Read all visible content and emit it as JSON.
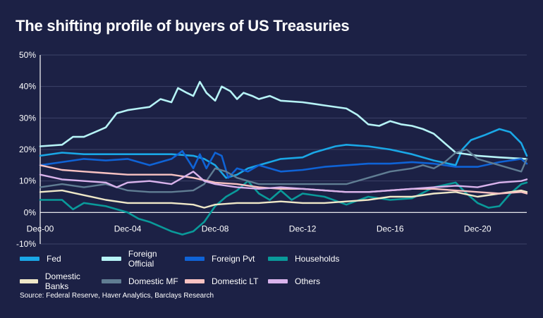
{
  "title": "The shifting profile of buyers of US Treasuries",
  "source": "Source: Federal Reserve, Haver Analytics, Barclays Research",
  "chart_data": {
    "type": "line",
    "title": "The shifting profile of buyers of US Treasuries",
    "x_tick_labels": [
      "Dec-00",
      "Dec-04",
      "Dec-08",
      "Dec-12",
      "Dec-16",
      "Dec-20"
    ],
    "x_tick_years": [
      2000,
      2004,
      2008,
      2012,
      2016,
      2020
    ],
    "x_range_years": [
      2000,
      2022.25
    ],
    "y_tick_labels": [
      "50%",
      "40%",
      "30%",
      "20%",
      "10%",
      "0%",
      "-10%"
    ],
    "y_ticks": [
      50,
      40,
      30,
      20,
      10,
      0,
      -10
    ],
    "ylim": [
      -10,
      50
    ],
    "grid": true,
    "legend_position": "bottom",
    "series": [
      {
        "name": "Fed",
        "color": "#1aa7e6",
        "width": 2.6,
        "points": [
          [
            2000,
            18
          ],
          [
            2001,
            19
          ],
          [
            2002,
            18.5
          ],
          [
            2003,
            18.5
          ],
          [
            2004,
            18.5
          ],
          [
            2005,
            18.5
          ],
          [
            2006,
            18.5
          ],
          [
            2007,
            18
          ],
          [
            2007.5,
            17
          ],
          [
            2008,
            15
          ],
          [
            2008.5,
            11
          ],
          [
            2009,
            12
          ],
          [
            2009.5,
            14
          ],
          [
            2010,
            15
          ],
          [
            2011,
            17
          ],
          [
            2012,
            17.5
          ],
          [
            2012.5,
            19
          ],
          [
            2013,
            20
          ],
          [
            2013.5,
            21
          ],
          [
            2014,
            21.5
          ],
          [
            2015,
            21
          ],
          [
            2016,
            20
          ],
          [
            2017,
            18.5
          ],
          [
            2018,
            16.5
          ],
          [
            2019,
            15
          ],
          [
            2019.3,
            20
          ],
          [
            2019.7,
            23
          ],
          [
            2020.3,
            24.5
          ],
          [
            2021,
            26.5
          ],
          [
            2021.5,
            25.5
          ],
          [
            2022,
            22
          ],
          [
            2022.25,
            18
          ]
        ]
      },
      {
        "name": "Foreign Official",
        "color": "#b6f3f6",
        "width": 2.6,
        "points": [
          [
            2000,
            21
          ],
          [
            2001,
            21.5
          ],
          [
            2001.5,
            24
          ],
          [
            2002,
            24
          ],
          [
            2002.5,
            25.5
          ],
          [
            2003,
            27
          ],
          [
            2003.5,
            31.5
          ],
          [
            2004,
            32.5
          ],
          [
            2004.5,
            33
          ],
          [
            2005,
            33.5
          ],
          [
            2005.5,
            36
          ],
          [
            2006,
            35
          ],
          [
            2006.3,
            39.5
          ],
          [
            2006.7,
            38
          ],
          [
            2007,
            37
          ],
          [
            2007.3,
            41.5
          ],
          [
            2007.6,
            38
          ],
          [
            2008,
            35.5
          ],
          [
            2008.3,
            40
          ],
          [
            2008.7,
            38.5
          ],
          [
            2009,
            36
          ],
          [
            2009.3,
            38
          ],
          [
            2009.7,
            37
          ],
          [
            2010,
            36
          ],
          [
            2010.5,
            37
          ],
          [
            2011,
            35.5
          ],
          [
            2012,
            35
          ],
          [
            2012.5,
            34.5
          ],
          [
            2013,
            34
          ],
          [
            2014,
            33
          ],
          [
            2014.5,
            31
          ],
          [
            2015,
            28
          ],
          [
            2015.5,
            27.5
          ],
          [
            2016,
            29
          ],
          [
            2016.5,
            28
          ],
          [
            2017,
            27.5
          ],
          [
            2017.5,
            26.5
          ],
          [
            2018,
            25
          ],
          [
            2018.5,
            22
          ],
          [
            2019,
            19
          ],
          [
            2020,
            18
          ],
          [
            2021,
            17.5
          ],
          [
            2022.25,
            17
          ]
        ]
      },
      {
        "name": "Foreign Pvt",
        "color": "#0f63d6",
        "width": 2.6,
        "points": [
          [
            2000,
            15
          ],
          [
            2001,
            16
          ],
          [
            2002,
            17
          ],
          [
            2003,
            16.5
          ],
          [
            2004,
            17
          ],
          [
            2005,
            15
          ],
          [
            2006,
            17
          ],
          [
            2006.5,
            19.5
          ],
          [
            2007,
            14
          ],
          [
            2007.3,
            18.5
          ],
          [
            2007.6,
            14
          ],
          [
            2008,
            19
          ],
          [
            2008.3,
            18
          ],
          [
            2008.6,
            11
          ],
          [
            2009,
            14
          ],
          [
            2009.5,
            13
          ],
          [
            2010,
            15
          ],
          [
            2010.5,
            14
          ],
          [
            2011,
            13
          ],
          [
            2012,
            13.5
          ],
          [
            2013,
            14.5
          ],
          [
            2014,
            15
          ],
          [
            2015,
            15.5
          ],
          [
            2016,
            15.5
          ],
          [
            2017,
            16
          ],
          [
            2018,
            15.5
          ],
          [
            2019,
            14.5
          ],
          [
            2020,
            14.5
          ],
          [
            2021,
            16
          ],
          [
            2022,
            17
          ],
          [
            2022.25,
            15.5
          ]
        ]
      },
      {
        "name": "Households",
        "color": "#0a9a9a",
        "width": 2.6,
        "points": [
          [
            2000,
            4
          ],
          [
            2001,
            4
          ],
          [
            2001.5,
            1
          ],
          [
            2002,
            3
          ],
          [
            2003,
            2
          ],
          [
            2004,
            0
          ],
          [
            2004.5,
            -2
          ],
          [
            2005,
            -3
          ],
          [
            2006,
            -6
          ],
          [
            2006.5,
            -7
          ],
          [
            2007,
            -6
          ],
          [
            2007.5,
            -3
          ],
          [
            2008,
            2
          ],
          [
            2008.5,
            5
          ],
          [
            2009,
            7
          ],
          [
            2009.5,
            10
          ],
          [
            2010,
            6
          ],
          [
            2010.5,
            4
          ],
          [
            2011,
            7
          ],
          [
            2011.5,
            4
          ],
          [
            2012,
            6
          ],
          [
            2013,
            5
          ],
          [
            2014,
            2.5
          ],
          [
            2015,
            5
          ],
          [
            2016,
            4
          ],
          [
            2017,
            4.5
          ],
          [
            2018,
            8
          ],
          [
            2019,
            9.5
          ],
          [
            2019.5,
            6
          ],
          [
            2020,
            3
          ],
          [
            2020.5,
            1.5
          ],
          [
            2021,
            2
          ],
          [
            2021.5,
            6
          ],
          [
            2022,
            9
          ],
          [
            2022.25,
            9.5
          ]
        ]
      },
      {
        "name": "Domestic Banks",
        "color": "#efe8c8",
        "width": 2.4,
        "points": [
          [
            2000,
            6.5
          ],
          [
            2001,
            7
          ],
          [
            2002,
            5.5
          ],
          [
            2003,
            4
          ],
          [
            2004,
            3
          ],
          [
            2005,
            3
          ],
          [
            2006,
            3
          ],
          [
            2007,
            2.5
          ],
          [
            2007.5,
            1.5
          ],
          [
            2008,
            2.5
          ],
          [
            2009,
            3
          ],
          [
            2010,
            3
          ],
          [
            2011,
            3.5
          ],
          [
            2012,
            3
          ],
          [
            2013,
            3
          ],
          [
            2014,
            3.5
          ],
          [
            2015,
            4
          ],
          [
            2016,
            5
          ],
          [
            2017,
            5
          ],
          [
            2018,
            6
          ],
          [
            2019,
            6.5
          ],
          [
            2020,
            5
          ],
          [
            2021,
            6
          ],
          [
            2022,
            7
          ],
          [
            2022.25,
            6.5
          ]
        ]
      },
      {
        "name": "Domestic MF",
        "color": "#607d93",
        "width": 2.4,
        "points": [
          [
            2000,
            8
          ],
          [
            2001,
            9
          ],
          [
            2002,
            8
          ],
          [
            2003,
            9
          ],
          [
            2004,
            7
          ],
          [
            2005,
            6.5
          ],
          [
            2006,
            6.5
          ],
          [
            2007,
            7
          ],
          [
            2007.5,
            9
          ],
          [
            2008,
            14
          ],
          [
            2008.5,
            13
          ],
          [
            2009,
            11
          ],
          [
            2010,
            9
          ],
          [
            2011,
            9
          ],
          [
            2012,
            9
          ],
          [
            2013,
            9
          ],
          [
            2014,
            9
          ],
          [
            2015,
            11
          ],
          [
            2016,
            13
          ],
          [
            2017,
            14
          ],
          [
            2017.5,
            15
          ],
          [
            2018,
            14
          ],
          [
            2018.5,
            16
          ],
          [
            2019,
            19
          ],
          [
            2019.5,
            20
          ],
          [
            2020,
            17
          ],
          [
            2020.5,
            16
          ],
          [
            2021,
            15
          ],
          [
            2021.5,
            14
          ],
          [
            2022,
            13
          ],
          [
            2022.25,
            17
          ]
        ]
      },
      {
        "name": "Domestic LT",
        "color": "#f8c2c2",
        "width": 2.4,
        "points": [
          [
            2000,
            15
          ],
          [
            2001,
            13.5
          ],
          [
            2002,
            13
          ],
          [
            2003,
            12.5
          ],
          [
            2004,
            12
          ],
          [
            2005,
            12
          ],
          [
            2006,
            12
          ],
          [
            2007,
            11
          ],
          [
            2008,
            9.5
          ],
          [
            2009,
            9
          ],
          [
            2010,
            8
          ],
          [
            2011,
            7.5
          ],
          [
            2012,
            7.5
          ],
          [
            2013,
            7
          ],
          [
            2014,
            6.5
          ],
          [
            2015,
            6.5
          ],
          [
            2016,
            7
          ],
          [
            2017,
            7.5
          ],
          [
            2018,
            7.5
          ],
          [
            2019,
            7
          ],
          [
            2020,
            6.5
          ],
          [
            2021,
            6
          ],
          [
            2022,
            6.5
          ],
          [
            2022.25,
            6
          ]
        ]
      },
      {
        "name": "Others",
        "color": "#d9b3ec",
        "width": 2.4,
        "points": [
          [
            2000,
            12
          ],
          [
            2001,
            10.5
          ],
          [
            2002,
            10
          ],
          [
            2003,
            9.5
          ],
          [
            2003.5,
            8
          ],
          [
            2004,
            9.5
          ],
          [
            2005,
            10
          ],
          [
            2006,
            9
          ],
          [
            2007,
            13
          ],
          [
            2007.5,
            10
          ],
          [
            2008,
            9
          ],
          [
            2009,
            8
          ],
          [
            2010,
            7.5
          ],
          [
            2011,
            8
          ],
          [
            2012,
            7.5
          ],
          [
            2013,
            7
          ],
          [
            2014,
            6.5
          ],
          [
            2015,
            6.5
          ],
          [
            2016,
            7
          ],
          [
            2017,
            7.5
          ],
          [
            2018,
            8
          ],
          [
            2019,
            8.5
          ],
          [
            2020,
            8
          ],
          [
            2021,
            9.5
          ],
          [
            2022,
            10
          ],
          [
            2022.25,
            10.5
          ]
        ]
      }
    ]
  }
}
